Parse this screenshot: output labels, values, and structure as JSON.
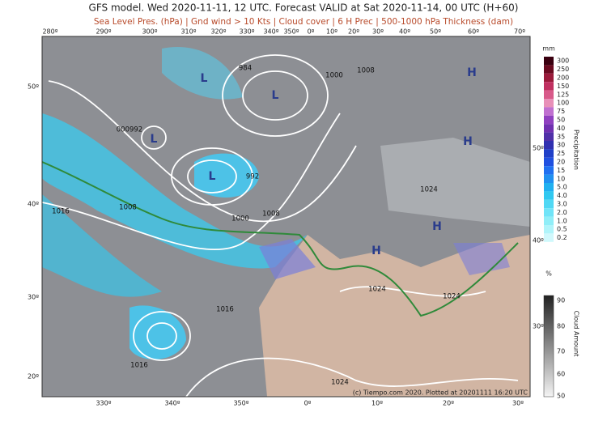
{
  "header": {
    "title": "GFS model. Wed 2020-11-11, 12 UTC. Forecast VALID at Sat 2020-11-14, 00 UTC (H+60)",
    "subtitle": "Sea Level Pres. (hPa) | Gnd wind > 10 Kts | Cloud cover | 6 H Prec | 500-1000 hPa Thickness (dam)"
  },
  "map": {
    "top_longitudes": [
      "280º",
      "290º",
      "300º",
      "310º",
      "320º",
      "330º",
      "340º",
      "350º",
      "0º",
      "10º",
      "20º",
      "30º",
      "40º",
      "50º",
      "60º",
      "70º"
    ],
    "bottom_longitudes": [
      "330º",
      "340º",
      "350º",
      "0º",
      "10º",
      "20º",
      "30º"
    ],
    "left_latitudes": [
      "50º",
      "40º",
      "30º",
      "20º"
    ],
    "right_latitudes": [
      "50º",
      "40º",
      "30º"
    ],
    "pressure_labels": [
      "984",
      "1000",
      "1008",
      "1016",
      "1008",
      "992",
      "1000",
      "1008",
      "1024",
      "1016",
      "1016",
      "1024",
      "1024",
      "1024",
      "000992"
    ],
    "centers": [
      "L",
      "L",
      "L",
      "L",
      "H",
      "H",
      "H",
      "H"
    ],
    "credit": "(c) Tiempo.com 2020. Plotted at 20201111 16:20 UTC"
  },
  "legend": {
    "precip_unit": "mm",
    "precip_title": "Precipitation",
    "precip_levels": [
      "300",
      "250",
      "200",
      "150",
      "125",
      "100",
      "75",
      "50",
      "40",
      "35",
      "30",
      "25",
      "20",
      "15",
      "10",
      "5.0",
      "4.0",
      "3.0",
      "2.0",
      "1.0",
      "0.5",
      "0.2"
    ],
    "cloud_unit": "%",
    "cloud_title": "Cloud Amount",
    "cloud_levels": [
      "90",
      "80",
      "70",
      "60",
      "50"
    ]
  }
}
